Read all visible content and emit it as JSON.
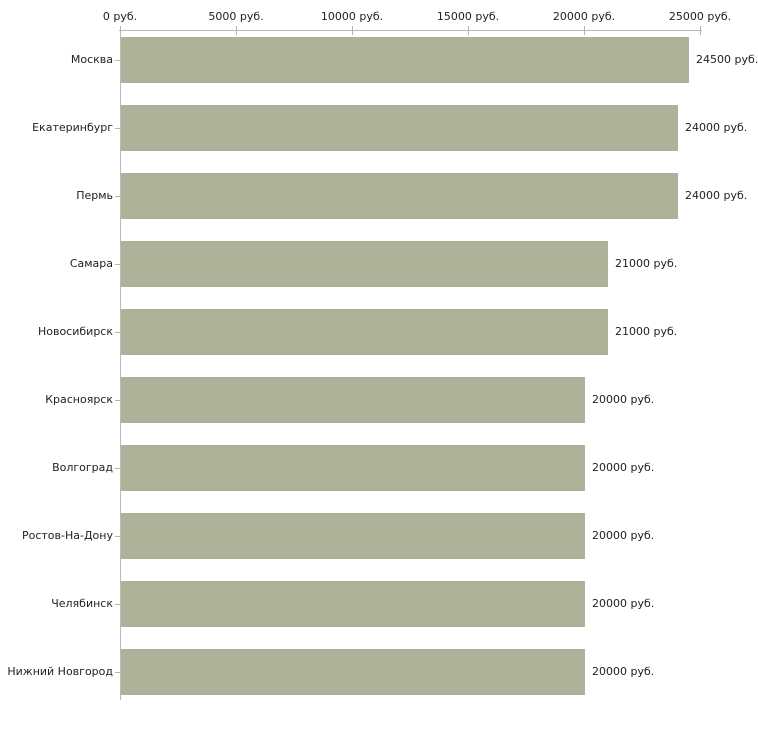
{
  "chart_data": {
    "type": "bar",
    "orientation": "horizontal",
    "title": "",
    "xlabel": "",
    "ylabel": "",
    "unit": "руб.",
    "grid": false,
    "legend": false,
    "categories": [
      "Москва",
      "Екатеринбург",
      "Пермь",
      "Самара",
      "Новосибирск",
      "Красноярск",
      "Волгоград",
      "Ростов-На-Дону",
      "Челябинск",
      "Нижний Новгород"
    ],
    "values": [
      24500,
      24000,
      24000,
      21000,
      21000,
      20000,
      20000,
      20000,
      20000,
      20000
    ],
    "value_labels": [
      "24500 руб.",
      "24000 руб.",
      "24000 руб.",
      "21000 руб.",
      "21000 руб.",
      "20000 руб.",
      "20000 руб.",
      "20000 руб.",
      "20000 руб.",
      "20000 руб."
    ],
    "x_axis": {
      "position": "top",
      "min": 0,
      "max": 25000,
      "ticks": [
        {
          "value": 0,
          "label": "0 руб."
        },
        {
          "value": 5000,
          "label": "5000 руб."
        },
        {
          "value": 10000,
          "label": "10000 руб."
        },
        {
          "value": 15000,
          "label": "15000 руб."
        },
        {
          "value": 20000,
          "label": "20000 руб."
        },
        {
          "value": 25000,
          "label": "25000 руб."
        }
      ]
    },
    "colors": {
      "bar": "#adb299",
      "axis_line": "#bababa",
      "tick": "#b6bb8f",
      "text": "#222222",
      "background": "#ffffff"
    }
  }
}
